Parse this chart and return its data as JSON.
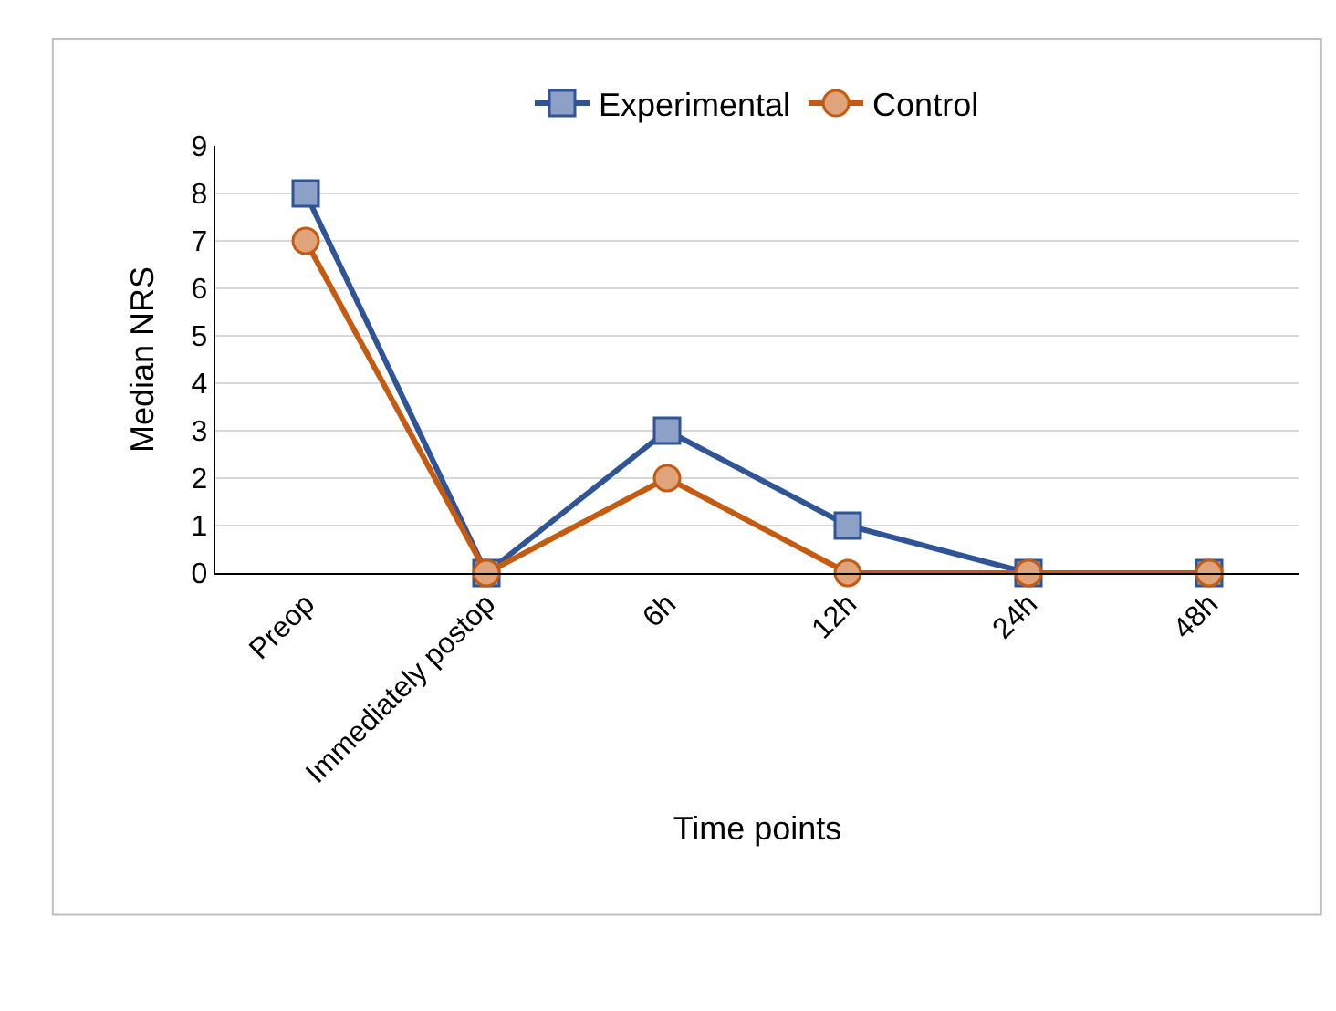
{
  "chart_data": {
    "type": "line",
    "xlabel": "Time points",
    "ylabel": "Median NRS",
    "categories": [
      "Preop",
      "Immediately postop",
      "6h",
      "12h",
      "24h",
      "48h"
    ],
    "series": [
      {
        "name": "Experimental",
        "color": "#2f5597",
        "values": [
          8,
          0,
          3,
          1,
          0,
          0
        ],
        "marker": "square"
      },
      {
        "name": "Control",
        "color": "#c55a11",
        "values": [
          7,
          0,
          2,
          0,
          0,
          0
        ],
        "marker": "circle"
      }
    ],
    "ylim": [
      0,
      9
    ],
    "yticks": [
      0,
      1,
      2,
      3,
      4,
      5,
      6,
      7,
      8,
      9
    ],
    "grid": "y",
    "legend": "top",
    "line_style": "solid"
  }
}
